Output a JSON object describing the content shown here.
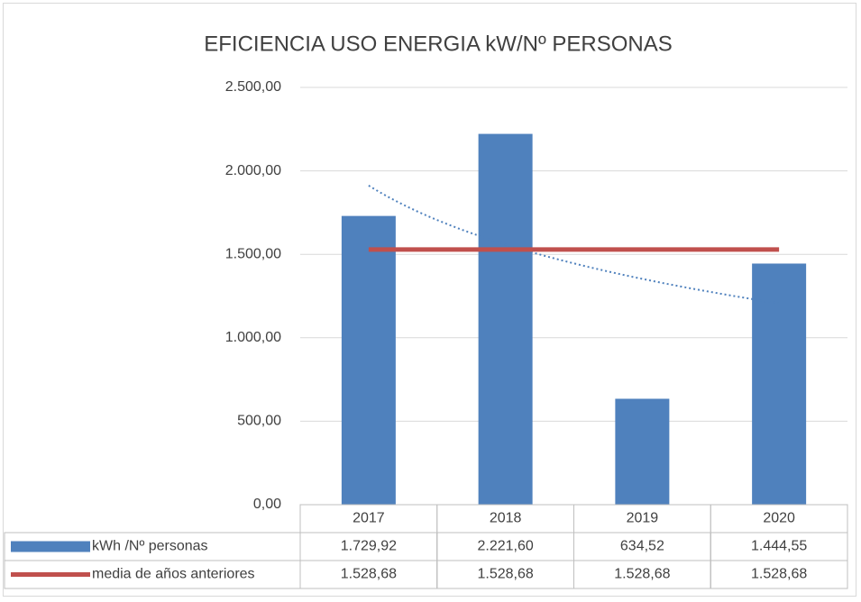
{
  "chart_data": {
    "type": "bar",
    "title": "EFICIENCIA USO ENERGIA kW/Nº PERSONAS",
    "categories": [
      "2017",
      "2018",
      "2019",
      "2020"
    ],
    "series": [
      {
        "name": "kWh /Nº personas",
        "type": "bar",
        "color": "#4f81bd",
        "values": [
          1729.92,
          2221.6,
          634.52,
          1444.55
        ],
        "value_labels": [
          "1.729,92",
          "2.221,60",
          "634,52",
          "1.444,55"
        ]
      },
      {
        "name": "media de años anteriores",
        "type": "line",
        "color": "#c0504d",
        "values": [
          1528.68,
          1528.68,
          1528.68,
          1528.68
        ],
        "value_labels": [
          "1.528,68",
          "1.528,68",
          "1.528,68",
          "1.528,68"
        ]
      }
    ],
    "trendline": {
      "type": "logarithmic",
      "series": 0,
      "color": "#4f81bd"
    },
    "ylim": [
      0,
      2500
    ],
    "yticks": [
      {
        "value": 0,
        "label": "0,00"
      },
      {
        "value": 500,
        "label": "500,00"
      },
      {
        "value": 1000,
        "label": "1.000,00"
      },
      {
        "value": 1500,
        "label": "1.500,00"
      },
      {
        "value": 2000,
        "label": "2.000,00"
      },
      {
        "value": 2500,
        "label": "2.500,00"
      }
    ],
    "grid": true,
    "data_table": true
  }
}
